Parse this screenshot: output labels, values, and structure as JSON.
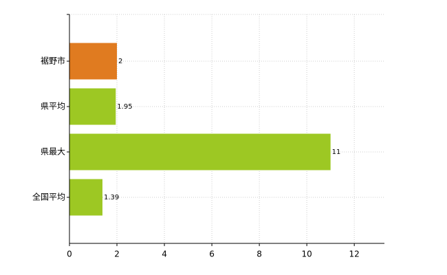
{
  "chart_data": {
    "type": "hbar",
    "categories": [
      "裾野市",
      "県平均",
      "県最大",
      "全国平均"
    ],
    "values": [
      2,
      1.95,
      11,
      1.39
    ],
    "colors": [
      "#e07b20",
      "#9dc823",
      "#9dc823",
      "#9dc823"
    ],
    "xlim": [
      0,
      13.27
    ],
    "xticks": [
      0,
      2,
      4,
      6,
      8,
      10,
      12
    ],
    "grid": true
  }
}
